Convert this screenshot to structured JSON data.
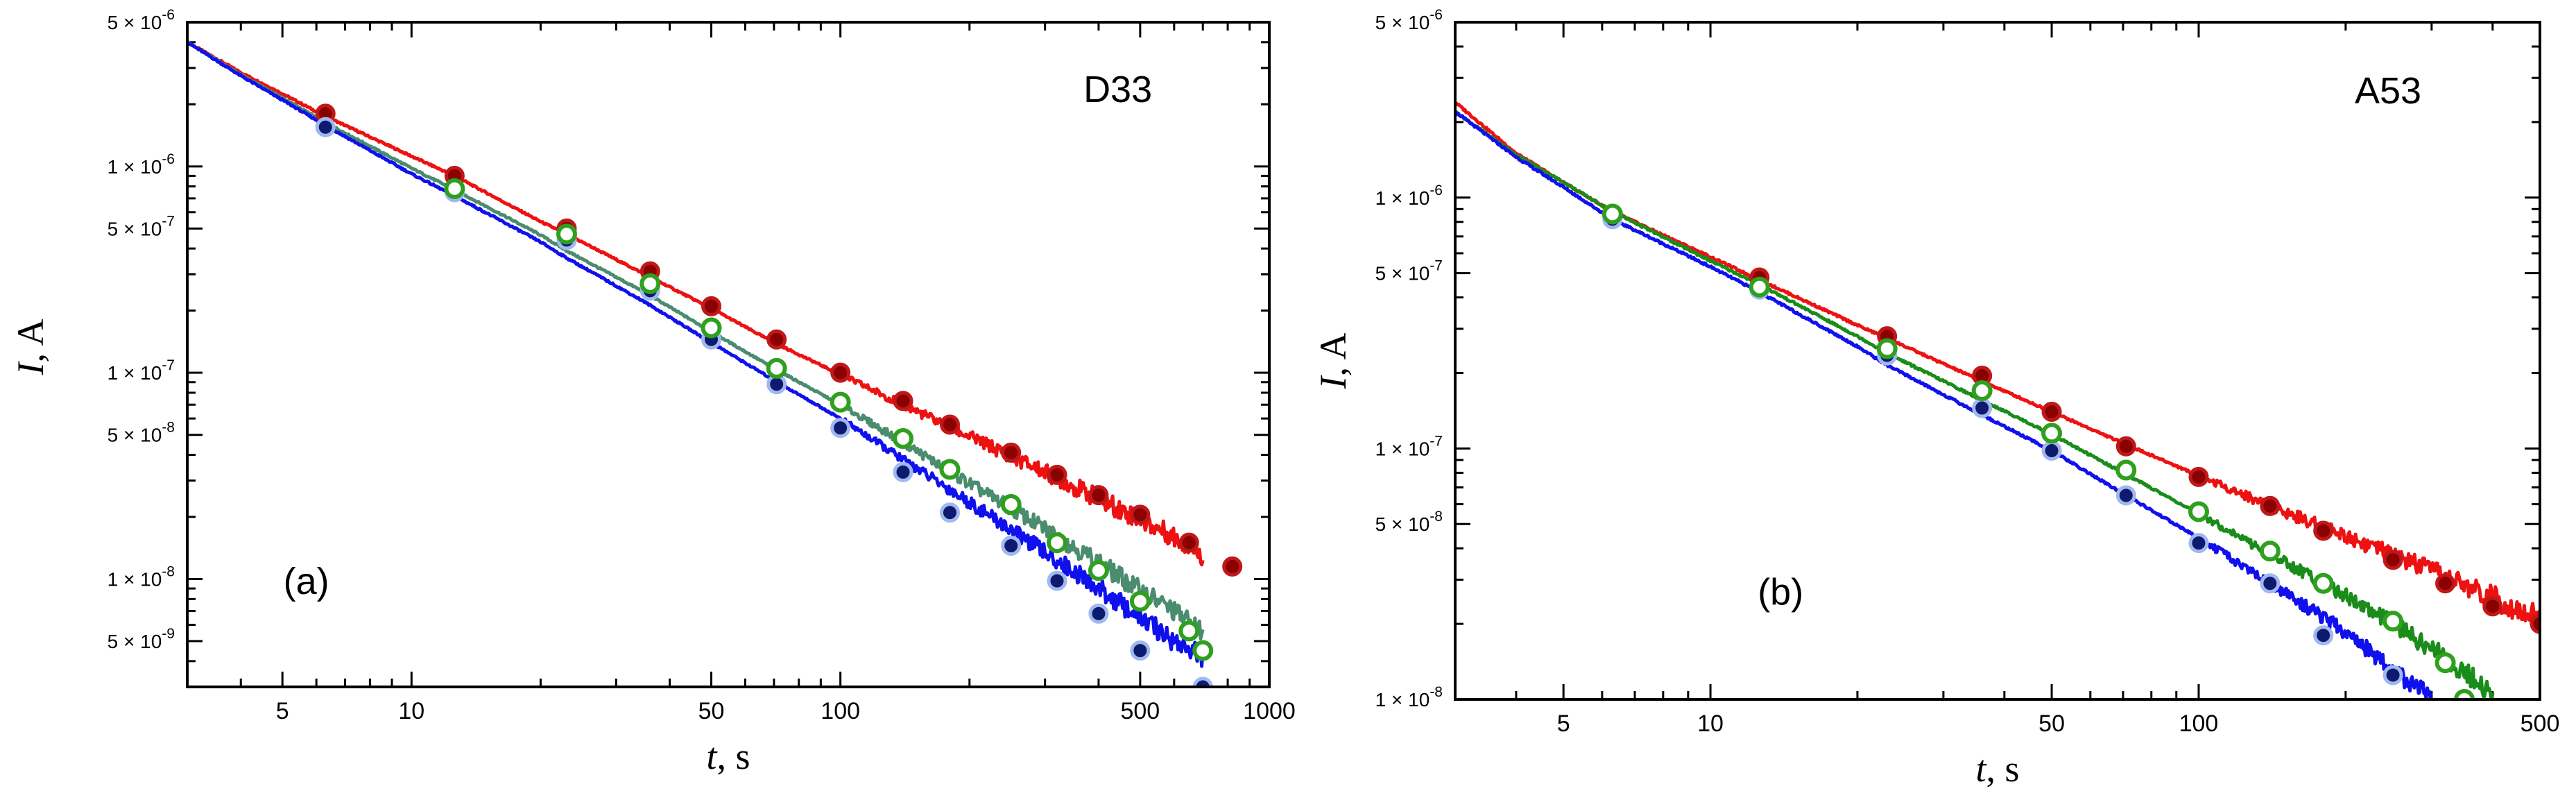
{
  "chart_data": [
    {
      "type": "line",
      "panel_tag": "(a)",
      "sample_label": "D33",
      "xlabel": {
        "var": "t",
        "unit": ", s"
      },
      "ylabel": {
        "var": "I",
        "unit": ", A"
      },
      "xscale": "log",
      "yscale": "log",
      "xlim": [
        3,
        1000
      ],
      "ylim": [
        3e-09,
        5e-06
      ],
      "xticks": [
        {
          "value": 5,
          "label": "5"
        },
        {
          "value": 10,
          "label": "10"
        },
        {
          "value": 50,
          "label": "50"
        },
        {
          "value": 100,
          "label": "100"
        },
        {
          "value": 500,
          "label": "500"
        },
        {
          "value": 1000,
          "label": "1000"
        }
      ],
      "yticks": [
        {
          "value": 5e-06,
          "mant": "5 × 10",
          "exp": "-6"
        },
        {
          "value": 1e-06,
          "mant": "1 × 10",
          "exp": "-6"
        },
        {
          "value": 5e-07,
          "mant": "5 × 10",
          "exp": "-7"
        },
        {
          "value": 1e-07,
          "mant": "1 × 10",
          "exp": "-7"
        },
        {
          "value": 5e-08,
          "mant": "5 × 10",
          "exp": "-8"
        },
        {
          "value": 1e-08,
          "mant": "1 × 10",
          "exp": "-8"
        },
        {
          "value": 5e-09,
          "mant": "5 × 10",
          "exp": "-9"
        }
      ],
      "series": [
        {
          "name": "red",
          "color": "#ee1111",
          "marker_fill": "#8b0000",
          "marker_edge": "#c01818",
          "marker_style": "filled",
          "line": {
            "x": [
              3,
              4,
              5,
              6.3,
              10,
              12.6,
              20,
              23,
              35,
              50,
              70,
              100,
              140,
              200,
              300,
              400,
              500,
              600,
              700
            ],
            "y": [
              4e-06,
              2.85e-06,
              2.25e-06,
              1.75e-06,
              1.12e-06,
              9e-07,
              5.4e-07,
              4.7e-07,
              3e-07,
              2.05e-07,
              1.4e-07,
              9.8e-08,
              7e-08,
              4.9e-08,
              3.3e-08,
              2.45e-08,
              1.95e-08,
              1.6e-08,
              1.3e-08
            ]
          },
          "markers": {
            "x": [
              6.3,
              12.6,
              23,
              36,
              50,
              71,
              100,
              140,
              180,
              250,
              320,
              400,
              500,
              650,
              820
            ],
            "y": [
              1.8e-06,
              9e-07,
              5e-07,
              3.1e-07,
              2.1e-07,
              1.45e-07,
              1e-07,
              7.3e-08,
              5.6e-08,
              4.1e-08,
              3.2e-08,
              2.55e-08,
              2.05e-08,
              1.5e-08,
              1.15e-08
            ]
          }
        },
        {
          "name": "green",
          "color": "#4a8c6e",
          "marker_fill": "#ffffff",
          "marker_edge": "#2ea01e",
          "marker_style": "open",
          "line": {
            "x": [
              3,
              4,
              5,
              6.3,
              10,
              12.6,
              20,
              23,
              35,
              50,
              70,
              100,
              140,
              200,
              300,
              400,
              500,
              600,
              700
            ],
            "y": [
              4e-06,
              2.78e-06,
              2.15e-06,
              1.63e-06,
              9.8e-07,
              7.7e-07,
              4.65e-07,
              3.9e-07,
              2.45e-07,
              1.58e-07,
              1.05e-07,
              7e-08,
              4.6e-08,
              2.9e-08,
              1.75e-08,
              1.2e-08,
              8.8e-09,
              7e-09,
              5.5e-09
            ]
          },
          "markers": {
            "x": [
              12.6,
              23,
              36,
              50,
              71,
              100,
              140,
              180,
              250,
              320,
              400,
              500,
              650,
              700
            ],
            "y": [
              7.8e-07,
              4.7e-07,
              2.7e-07,
              1.65e-07,
              1.05e-07,
              7.2e-08,
              4.8e-08,
              3.4e-08,
              2.3e-08,
              1.5e-08,
              1.1e-08,
              7.8e-09,
              5.6e-09,
              4.5e-09
            ]
          }
        },
        {
          "name": "blue",
          "color": "#1010ee",
          "marker_fill": "#0d1a6e",
          "marker_edge": "#a0b8f0",
          "marker_style": "filled",
          "line": {
            "x": [
              3,
              4,
              5,
              6.3,
              10,
              12.6,
              20,
              23,
              35,
              50,
              70,
              100,
              140,
              200,
              300,
              400,
              500,
              600,
              700
            ],
            "y": [
              4e-06,
              2.75e-06,
              2.1e-06,
              1.58e-06,
              9.2e-07,
              7.2e-07,
              4.3e-07,
              3.6e-07,
              2.2e-07,
              1.4e-07,
              9.2e-08,
              6e-08,
              3.8e-08,
              2.35e-08,
              1.35e-08,
              9e-09,
              6.5e-09,
              5e-09,
              4.2e-09
            ]
          },
          "markers": {
            "x": [
              6.3,
              12.6,
              23,
              36,
              50,
              71,
              100,
              140,
              180,
              250,
              320,
              400,
              500,
              700
            ],
            "y": [
              1.55e-06,
              7.5e-07,
              4.4e-07,
              2.5e-07,
              1.45e-07,
              8.8e-08,
              5.4e-08,
              3.3e-08,
              2.1e-08,
              1.45e-08,
              9.8e-09,
              6.8e-09,
              4.5e-09,
              3e-09
            ]
          }
        }
      ]
    },
    {
      "type": "line",
      "panel_tag": "(b)",
      "sample_label": "A53",
      "xlabel": {
        "var": "t",
        "unit": ", s"
      },
      "ylabel": {
        "var": "I",
        "unit": ", A"
      },
      "xscale": "log",
      "yscale": "log",
      "xlim": [
        3,
        500
      ],
      "ylim": [
        1e-08,
        5e-06
      ],
      "xticks": [
        {
          "value": 5,
          "label": "5"
        },
        {
          "value": 10,
          "label": "10"
        },
        {
          "value": 50,
          "label": "50"
        },
        {
          "value": 100,
          "label": "100"
        },
        {
          "value": 500,
          "label": "500"
        }
      ],
      "yticks": [
        {
          "value": 5e-06,
          "mant": "5 × 10",
          "exp": "-6"
        },
        {
          "value": 1e-06,
          "mant": "1 × 10",
          "exp": "-6"
        },
        {
          "value": 5e-07,
          "mant": "5 × 10",
          "exp": "-7"
        },
        {
          "value": 1e-07,
          "mant": "1 × 10",
          "exp": "-7"
        },
        {
          "value": 5e-08,
          "mant": "5 × 10",
          "exp": "-8"
        },
        {
          "value": 1e-08,
          "mant": "1 × 10",
          "exp": "-8"
        }
      ],
      "series": [
        {
          "name": "red",
          "color": "#ee1111",
          "marker_fill": "#8b0000",
          "marker_edge": "#c01818",
          "marker_style": "filled",
          "line": {
            "x": [
              3,
              4,
              5,
              6.3,
              10,
              12.6,
              20,
              23,
              35,
              50,
              70,
              100,
              140,
              200,
              300,
              400,
              500
            ],
            "y": [
              2.4e-06,
              1.5e-06,
              1.15e-06,
              8.8e-07,
              5.8e-07,
              4.7e-07,
              3.1e-07,
              2.75e-07,
              1.9e-07,
              1.4e-07,
              1.05e-07,
              7.8e-08,
              5.9e-08,
              4.5e-08,
              3.25e-08,
              2.55e-08,
              2.1e-08
            ]
          },
          "markers": {
            "x": [
              12.6,
              23,
              36,
              50,
              71,
              100,
              140,
              180,
              250,
              320,
              400,
              500
            ],
            "y": [
              4.8e-07,
              2.8e-07,
              1.95e-07,
              1.4e-07,
              1.02e-07,
              7.7e-08,
              5.9e-08,
              4.7e-08,
              3.6e-08,
              2.9e-08,
              2.35e-08,
              2e-08
            ]
          }
        },
        {
          "name": "green",
          "color": "#1a8c1a",
          "marker_fill": "#ffffff",
          "marker_edge": "#2ea01e",
          "marker_style": "open",
          "line": {
            "x": [
              3,
              4,
              5,
              6.3,
              10,
              12.6,
              20,
              23,
              35,
              50,
              70,
              100,
              140,
              200,
              300,
              400
            ],
            "y": [
              2.2e-06,
              1.48e-06,
              1.15e-06,
              8.8e-07,
              5.6e-07,
              4.5e-07,
              2.8e-07,
              2.4e-07,
              1.6e-07,
              1.14e-07,
              8e-08,
              5.5e-08,
              3.8e-08,
              2.6e-08,
              1.6e-08,
              1.05e-08
            ]
          },
          "markers": {
            "x": [
              6.3,
              12.6,
              23,
              36,
              50,
              71,
              100,
              140,
              180,
              250,
              320,
              350
            ],
            "y": [
              8.6e-07,
              4.4e-07,
              2.5e-07,
              1.7e-07,
              1.15e-07,
              8.2e-08,
              5.6e-08,
              3.9e-08,
              2.9e-08,
              2.05e-08,
              1.4e-08,
              1e-08
            ]
          }
        },
        {
          "name": "blue",
          "color": "#1010ee",
          "marker_fill": "#0d1a6e",
          "marker_edge": "#a0b8f0",
          "marker_style": "filled",
          "line": {
            "x": [
              3,
              4,
              5,
              6.3,
              10,
              12.6,
              20,
              23,
              35,
              50,
              70,
              100,
              140,
              200,
              300
            ],
            "y": [
              2.2e-06,
              1.45e-06,
              1.1e-06,
              8.2e-07,
              5.3e-07,
              4.2e-07,
              2.55e-07,
              2.15e-07,
              1.4e-07,
              9.8e-08,
              6.6e-08,
              4.4e-08,
              2.9e-08,
              1.85e-08,
              1e-08
            ]
          },
          "markers": {
            "x": [
              6.3,
              12.6,
              23,
              36,
              50,
              71,
              100,
              140,
              180,
              250
            ],
            "y": [
              8.2e-07,
              4.3e-07,
              2.35e-07,
              1.45e-07,
              9.8e-08,
              6.5e-08,
              4.2e-08,
              2.9e-08,
              1.8e-08,
              1.25e-08
            ]
          }
        }
      ]
    }
  ]
}
